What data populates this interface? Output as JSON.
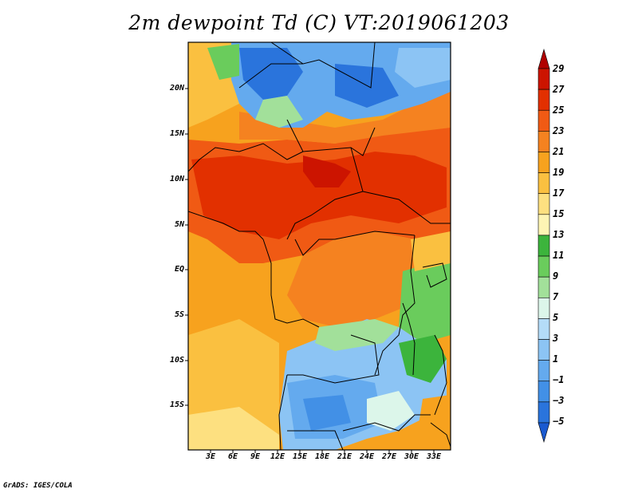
{
  "title": "2m dewpoint Td (C) VT:2019061203",
  "credit": "GrADS: IGES/COLA",
  "map": {
    "latitude_labels": [
      "20N",
      "15N",
      "10N",
      "5N",
      "EQ",
      "5S",
      "10S",
      "15S"
    ],
    "longitude_labels": [
      "3E",
      "6E",
      "9E",
      "12E",
      "15E",
      "18E",
      "21E",
      "24E",
      "27E",
      "30E",
      "33E"
    ],
    "colorbar": {
      "levels": [
        "29",
        "27",
        "25",
        "23",
        "21",
        "19",
        "17",
        "15",
        "13",
        "11",
        "9",
        "7",
        "5",
        "3",
        "1",
        "−1",
        "−3",
        "−5"
      ],
      "colors": [
        "#b00000",
        "#cc1400",
        "#e23000",
        "#f05a14",
        "#f58220",
        "#f7a21e",
        "#fac040",
        "#fde080",
        "#fef5b4",
        "#3cb43c",
        "#6acc5c",
        "#a2e09a",
        "#dcf6ea",
        "#b4dcf8",
        "#8cc4f4",
        "#64aaee",
        "#4290e6",
        "#2a74dc",
        "#1a5ad0"
      ]
    }
  }
}
